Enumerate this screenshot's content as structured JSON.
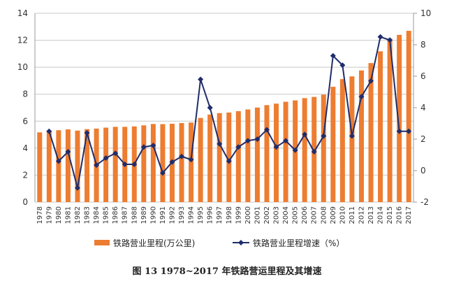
{
  "chart_data": {
    "type": "bar+line",
    "title": "",
    "caption": "图 13   1978~2017 年铁路营运里程及其增速",
    "categories": [
      "1978",
      "1979",
      "1980",
      "1981",
      "1982",
      "1983",
      "1984",
      "1985",
      "1986",
      "1987",
      "1988",
      "1989",
      "1990",
      "1991",
      "1992",
      "1993",
      "1994",
      "1995",
      "1996",
      "1997",
      "1998",
      "1999",
      "2000",
      "2001",
      "2002",
      "2003",
      "2004",
      "2005",
      "2006",
      "2007",
      "2008",
      "2009",
      "2010",
      "2011",
      "2012",
      "2013",
      "2014",
      "2015",
      "2016",
      "2017"
    ],
    "series": [
      {
        "name": "铁路营业里程(万公里)",
        "type": "bar",
        "axis": "left",
        "color": "#ED7D31",
        "values": [
          5.17,
          5.3,
          5.33,
          5.39,
          5.3,
          5.41,
          5.45,
          5.52,
          5.58,
          5.58,
          5.61,
          5.69,
          5.79,
          5.78,
          5.81,
          5.86,
          5.9,
          6.24,
          6.49,
          6.6,
          6.64,
          6.74,
          6.87,
          7.01,
          7.19,
          7.3,
          7.44,
          7.54,
          7.71,
          7.8,
          7.97,
          8.55,
          9.12,
          9.32,
          9.76,
          10.31,
          11.18,
          12.1,
          12.4,
          12.7
        ]
      },
      {
        "name": "铁路营业里程增速（%）",
        "type": "line",
        "axis": "right",
        "color": "#1F2D6B",
        "values": [
          null,
          2.5,
          0.6,
          1.2,
          -1.1,
          2.4,
          0.35,
          0.8,
          1.1,
          0.4,
          0.4,
          1.5,
          1.6,
          -0.15,
          0.55,
          0.9,
          0.7,
          5.8,
          4.0,
          1.7,
          0.6,
          1.5,
          1.9,
          2.0,
          2.6,
          1.5,
          1.9,
          1.3,
          2.3,
          1.2,
          2.2,
          7.3,
          6.7,
          2.2,
          4.7,
          5.7,
          8.5,
          8.3,
          2.5,
          2.5
        ]
      }
    ],
    "y_left": {
      "range": [
        0,
        14
      ],
      "ticks": [
        "0",
        "2",
        "4",
        "6",
        "8",
        "10",
        "12",
        "14"
      ]
    },
    "y_right": {
      "range": [
        -2,
        10
      ],
      "ticks": [
        "-2",
        "0",
        "2",
        "4",
        "6",
        "8",
        "10"
      ]
    },
    "grid": true,
    "legend_position": "bottom"
  }
}
